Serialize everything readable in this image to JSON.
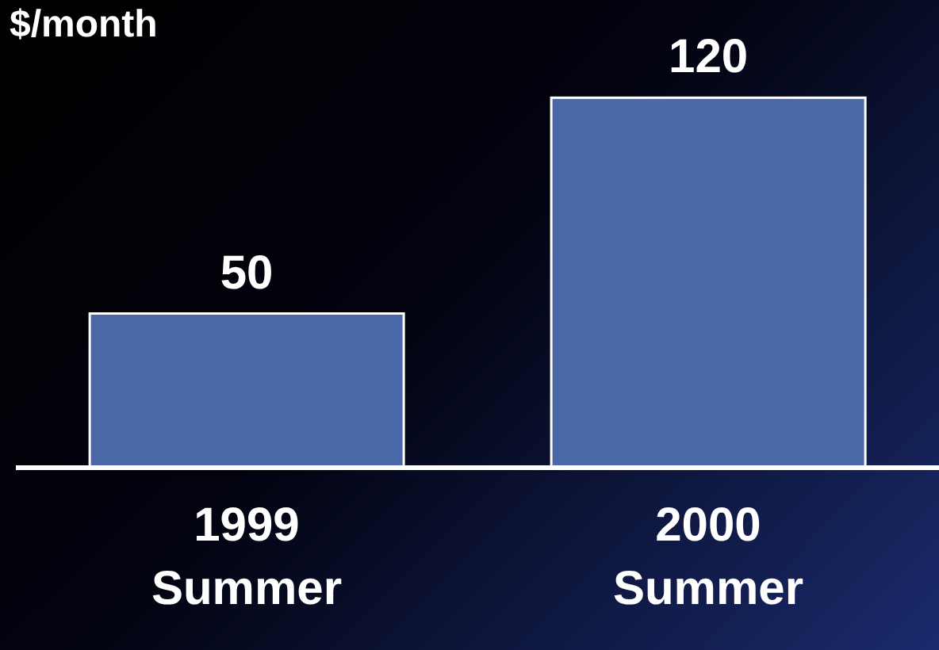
{
  "chart_data": {
    "type": "bar",
    "ylabel": "$/month",
    "categories": [
      "1999 Summer",
      "2000 Summer"
    ],
    "values": [
      50,
      120
    ],
    "color": "#4a68a8",
    "data_labels": true,
    "grid": false,
    "legend": false
  }
}
